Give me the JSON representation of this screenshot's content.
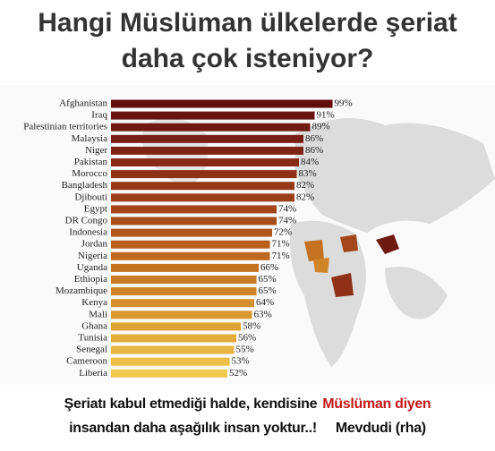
{
  "chart_data": {
    "type": "hbar",
    "title": "Hangi Müslüman ülkelerde şeriat daha çok isteniyor?",
    "categories": [
      "Afghanistan",
      "Iraq",
      "Palestinian territories",
      "Malaysia",
      "Niger",
      "Pakistan",
      "Morocco",
      "Bangladesh",
      "Djibouti",
      "Egypt",
      "DR Congo",
      "Indonesia",
      "Jordan",
      "Nigeria",
      "Uganda",
      "Ethiopia",
      "Mozambique",
      "Kenya",
      "Mali",
      "Ghana",
      "Tunisia",
      "Senegal",
      "Cameroon",
      "Liberia"
    ],
    "values": [
      99,
      91,
      89,
      86,
      86,
      84,
      83,
      82,
      82,
      74,
      74,
      72,
      71,
      71,
      66,
      65,
      65,
      64,
      63,
      58,
      56,
      55,
      53,
      52
    ],
    "value_labels": [
      "99%",
      "91%",
      "89%",
      "86%",
      "86%",
      "84%",
      "83%",
      "82%",
      "82%",
      "74%",
      "74%",
      "72%",
      "71%",
      "71%",
      "66%",
      "65%",
      "65%",
      "64%",
      "63%",
      "58%",
      "56%",
      "55%",
      "53%",
      "52%"
    ],
    "colors": [
      "#5e0d0b",
      "#681410",
      "#701a12",
      "#781f14",
      "#7f2515",
      "#872b16",
      "#8e3117",
      "#963818",
      "#9c3f19",
      "#a3471a",
      "#aa4f1b",
      "#b1571c",
      "#b85f1e",
      "#be6820",
      "#c47122",
      "#ca7a25",
      "#d08428",
      "#d58e2c",
      "#da9830",
      "#dfa235",
      "#e4ac3a",
      "#e8b640",
      "#ecc047",
      "#efc94e"
    ],
    "xlim": [
      0,
      100
    ],
    "caption": [
      "Şeriatı kabul etmediği halde, kendisine",
      "Müslüman diyen",
      "insandan daha aşağılık insan yoktur..!",
      "Mevdudi (rha)"
    ]
  }
}
